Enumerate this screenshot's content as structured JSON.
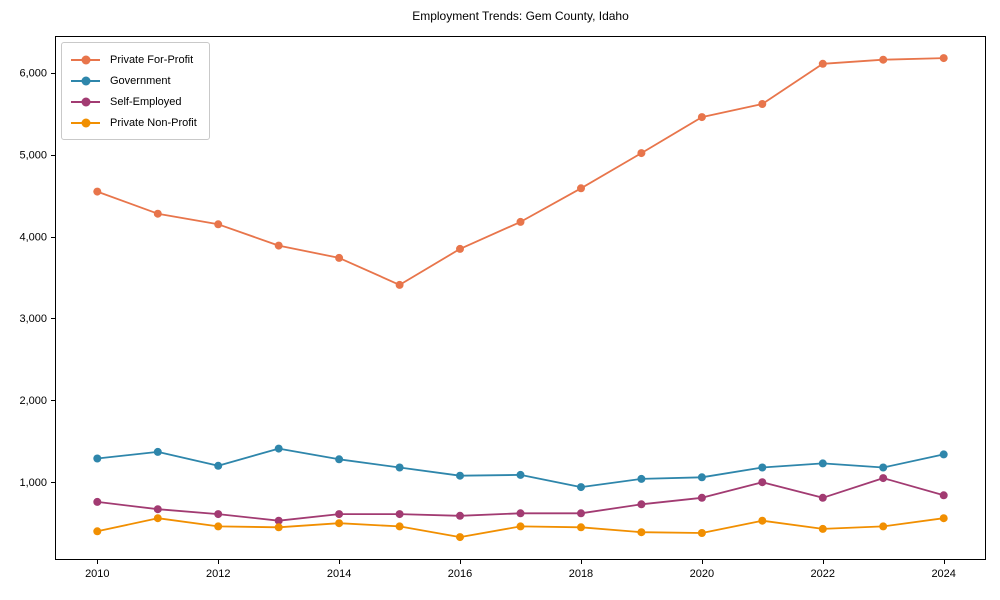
{
  "chart_data": {
    "type": "line",
    "title": "Employment Trends: Gem County, Idaho",
    "xlabel": "",
    "ylabel": "",
    "x": [
      2010,
      2011,
      2012,
      2013,
      2014,
      2015,
      2016,
      2017,
      2018,
      2019,
      2020,
      2021,
      2022,
      2023,
      2024
    ],
    "xticks": [
      2010,
      2012,
      2014,
      2016,
      2018,
      2020,
      2022,
      2024
    ],
    "yticks": [
      1000,
      2000,
      3000,
      4000,
      5000,
      6000
    ],
    "ytick_labels": [
      "1,000",
      "2,000",
      "3,000",
      "4,000",
      "5,000",
      "6,000"
    ],
    "xlim": [
      2009.3,
      2024.7
    ],
    "ylim": [
      50,
      6450
    ],
    "grid": false,
    "legend_position": "upper-left",
    "series": [
      {
        "name": "Private For-Profit",
        "color": "#e8754b",
        "values": [
          4550,
          4280,
          4150,
          3890,
          3740,
          3410,
          3850,
          4180,
          4590,
          5020,
          5460,
          5620,
          6110,
          6160,
          6180
        ]
      },
      {
        "name": "Government",
        "color": "#2e86ab",
        "values": [
          1290,
          1370,
          1200,
          1410,
          1280,
          1180,
          1080,
          1090,
          940,
          1040,
          1060,
          1180,
          1230,
          1180,
          1340
        ]
      },
      {
        "name": "Self-Employed",
        "color": "#a23b72",
        "values": [
          760,
          670,
          610,
          530,
          610,
          610,
          590,
          620,
          620,
          730,
          810,
          1000,
          810,
          1050,
          840
        ]
      },
      {
        "name": "Private Non-Profit",
        "color": "#f18f01",
        "values": [
          400,
          560,
          460,
          450,
          500,
          460,
          330,
          460,
          450,
          390,
          380,
          530,
          430,
          460,
          560
        ]
      }
    ]
  }
}
